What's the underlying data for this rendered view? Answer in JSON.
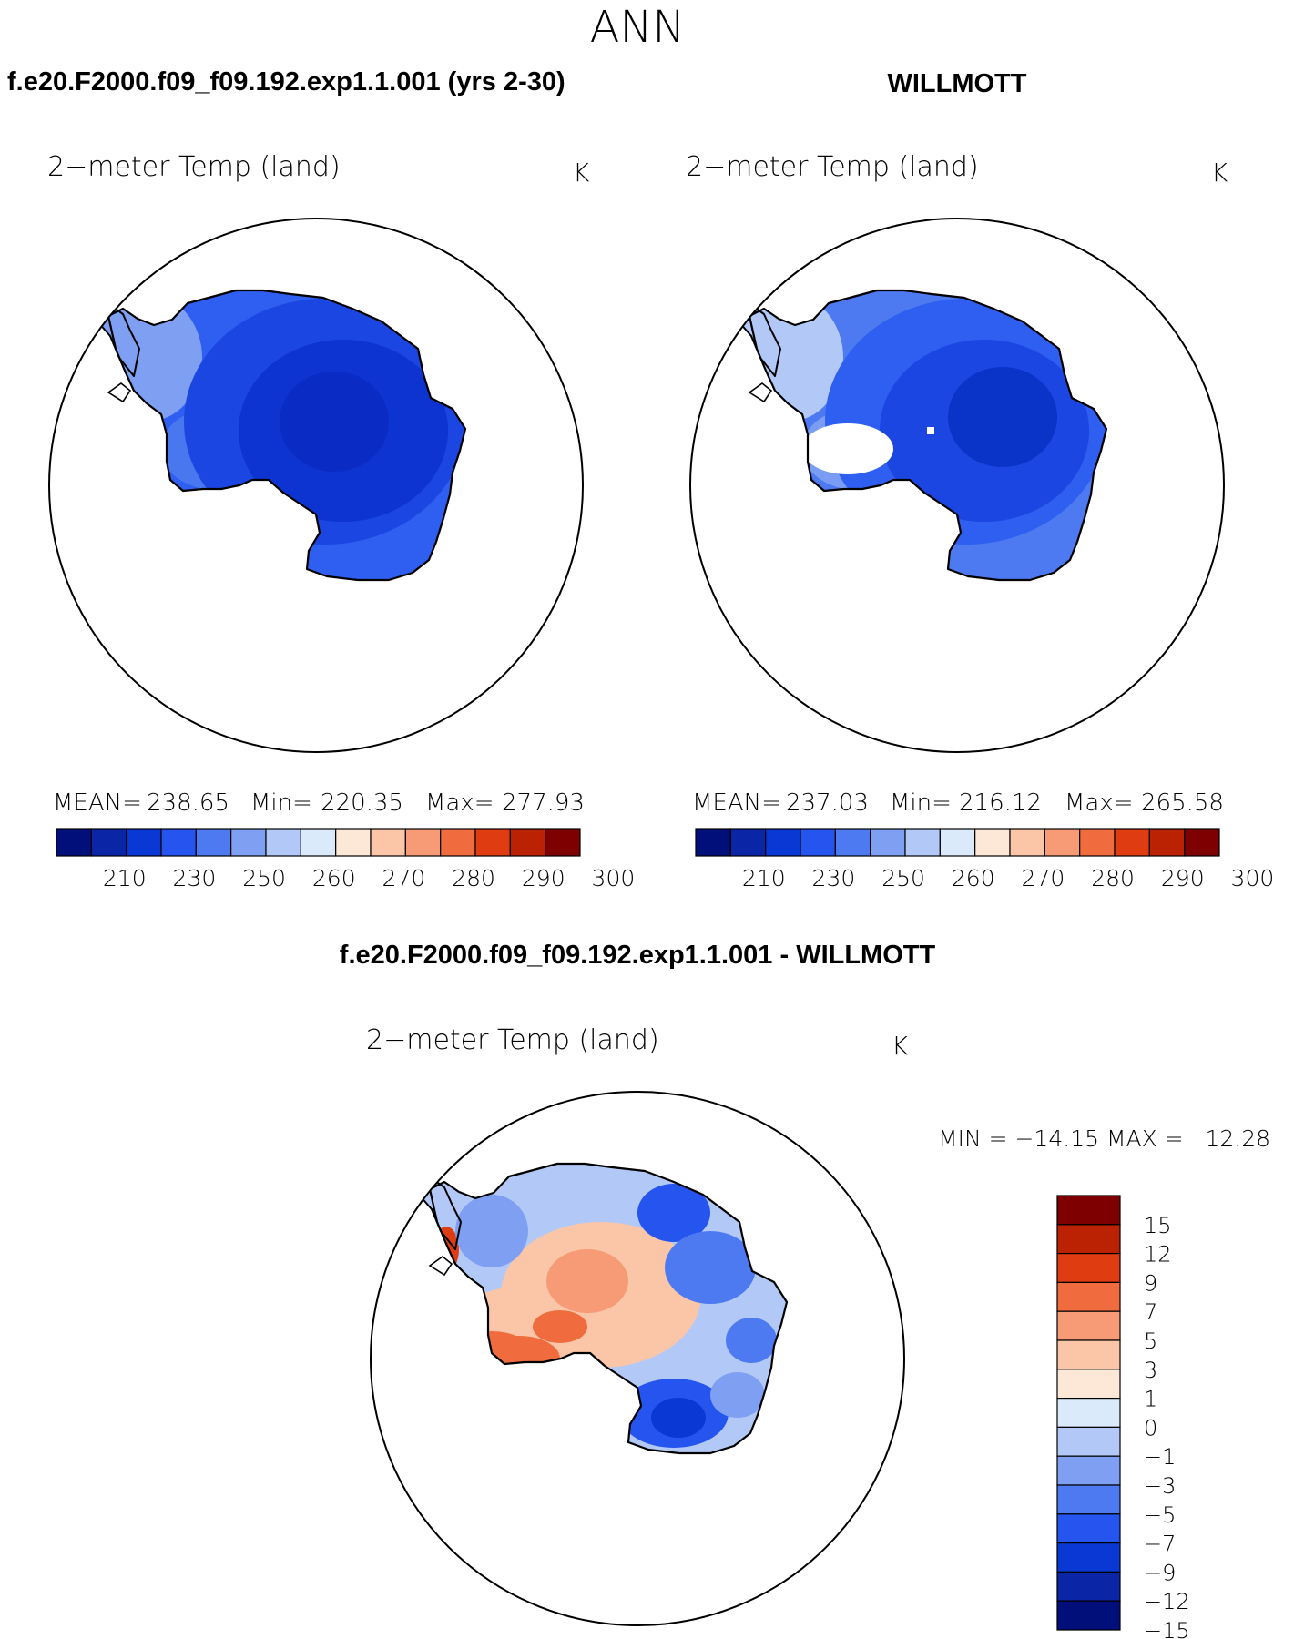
{
  "page": {
    "title": "ANN"
  },
  "panels": [
    {
      "id": "model",
      "header": "f.e20.F2000.f09_f09.192.exp1.1.001 (yrs 2-30)",
      "var_label": "2−meter Temp (land)",
      "units": "K",
      "stats": {
        "mean_label": "MEAN=",
        "mean": "238.65",
        "min_label": "Min=",
        "min": "220.35",
        "max_label": "Max=",
        "max": "277.93"
      }
    },
    {
      "id": "obs",
      "header": "WILLMOTT",
      "var_label": "2−meter Temp (land)",
      "units": "K",
      "stats": {
        "mean_label": "MEAN=",
        "mean": "237.03",
        "min_label": "Min=",
        "min": "216.12",
        "max_label": "Max=",
        "max": "265.58"
      }
    },
    {
      "id": "diff",
      "header": "f.e20.F2000.f09_f09.192.exp1.1.001 - WILLMOTT",
      "var_label": "2−meter Temp (land)",
      "units": "K",
      "stats": {
        "minmax_text": "MIN = −14.15 MAX =   12.28"
      }
    }
  ],
  "colorbars": {
    "absolute": {
      "colors": [
        "#000f7a",
        "#0a25a5",
        "#0a38d5",
        "#2554ee",
        "#4d7af0",
        "#7fa0f2",
        "#b2c9f7",
        "#dbeafb",
        "#fde8d7",
        "#fbc5a8",
        "#f69b75",
        "#f06c3e",
        "#e03c12",
        "#bb2204",
        "#7f0000"
      ],
      "tick_labels": [
        "210",
        "230",
        "250",
        "260",
        "270",
        "280",
        "290",
        "300"
      ]
    },
    "difference": {
      "colors": [
        "#7f0000",
        "#bb2204",
        "#e03c12",
        "#f06c3e",
        "#f69b75",
        "#fbc5a8",
        "#fde8d7",
        "#dbeafb",
        "#b2c9f7",
        "#7fa0f2",
        "#4d7af0",
        "#2554ee",
        "#0a38d5",
        "#0a25a5",
        "#000f7a"
      ],
      "tick_labels": [
        "15",
        "12",
        "9",
        "7",
        "5",
        "3",
        "1",
        "0",
        "−1",
        "−3",
        "−5",
        "−7",
        "−9",
        "−12",
        "−15"
      ]
    }
  },
  "map_colors": {
    "model": {
      "outer": "#2e5ff0",
      "mid": "#1b46e2",
      "inner": "#0d33d0",
      "core": "#0a2cc4",
      "coast": "#4d7af0",
      "peninsula": "#7fa0f2"
    },
    "obs": {
      "outer": "#4d7af0",
      "mid": "#2e5ff0",
      "inner": "#1b46e2",
      "core": "#0a33c8",
      "coast": "#7fa0f2",
      "peninsula": "#b2c9f7"
    },
    "diff": {
      "base": "#b2c9f7",
      "warm1": "#fbc5a8",
      "warm2": "#f69b75",
      "warm3": "#f06c3e",
      "warm4": "#e03c12",
      "cool1": "#7fa0f2",
      "cool2": "#4d7af0",
      "cool3": "#2554ee",
      "cool4": "#0a38d5"
    }
  }
}
